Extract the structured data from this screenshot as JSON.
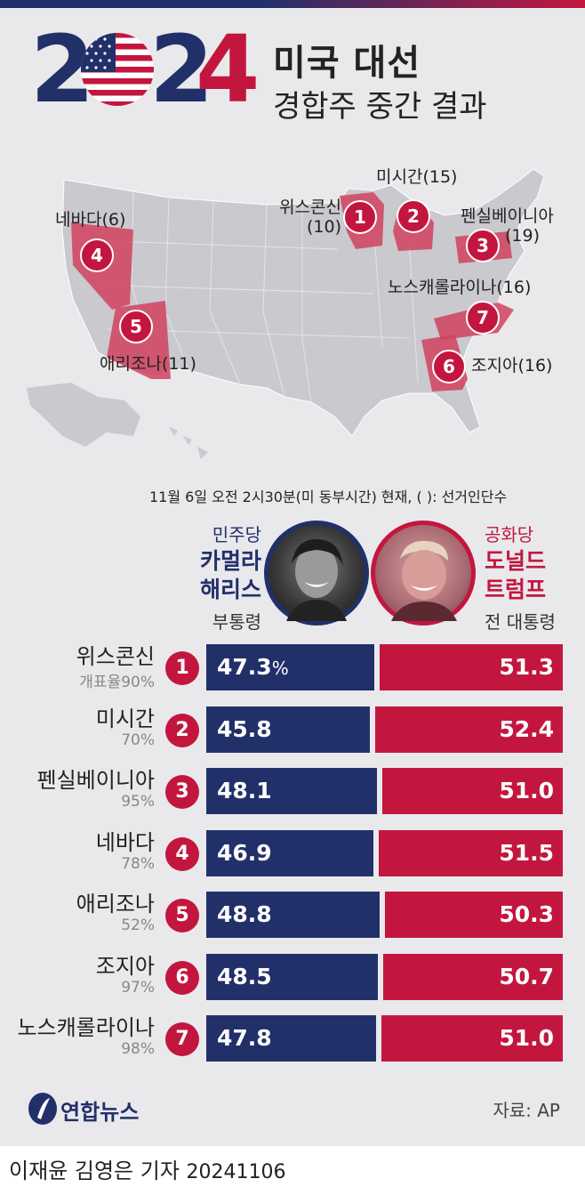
{
  "header": {
    "year_digits": [
      "2",
      "0",
      "2",
      "4"
    ],
    "title_line1": "미국 대선",
    "title_line2": "경합주 중간 결과"
  },
  "map": {
    "labels": [
      {
        "key": "wisconsin",
        "text": "위스콘신",
        "sub": "(10)",
        "pin": "1"
      },
      {
        "key": "michigan",
        "text": "미시간(15)",
        "pin": "2"
      },
      {
        "key": "pennsylvania",
        "text": "펜실베이니아",
        "sub": "(19)",
        "pin": "3"
      },
      {
        "key": "nevada",
        "text": "네바다(6)",
        "pin": "4"
      },
      {
        "key": "arizona",
        "text": "애리조나(11)",
        "pin": "5"
      },
      {
        "key": "georgia",
        "text": "조지아(16)",
        "pin": "6"
      },
      {
        "key": "north_carolina",
        "text": "노스캐롤라이나(16)",
        "pin": "7"
      }
    ]
  },
  "note": "11월 6일 오전 2시30분(미 동부시간) 현재, (  ): 선거인단수",
  "candidates": {
    "dem": {
      "party": "민주당",
      "name_line1": "카멀라",
      "name_line2": "해리스",
      "role": "부통령",
      "color": "#22306a"
    },
    "rep": {
      "party": "공화당",
      "name_line1": "도널드",
      "name_line2": "트럼프",
      "role": "전 대통령",
      "color": "#c3163e"
    }
  },
  "chart_data": {
    "type": "bar",
    "categories": [
      "위스콘신",
      "미시간",
      "펜실베이니아",
      "네바다",
      "애리조나",
      "조지아",
      "노스캐롤라이나"
    ],
    "counting_rates": [
      "개표율90%",
      "70%",
      "95%",
      "78%",
      "52%",
      "97%",
      "98%"
    ],
    "pin_numbers": [
      "1",
      "2",
      "3",
      "4",
      "5",
      "6",
      "7"
    ],
    "series": [
      {
        "name": "카멀라 해리스",
        "values": [
          47.3,
          45.8,
          48.1,
          46.9,
          48.8,
          48.5,
          47.8
        ],
        "labels": [
          "47.3",
          "45.8",
          "48.1",
          "46.9",
          "48.8",
          "48.5",
          "47.8"
        ],
        "color": "#22306a"
      },
      {
        "name": "도널드 트럼프",
        "values": [
          51.3,
          52.4,
          51.0,
          51.5,
          50.3,
          50.7,
          51.0
        ],
        "labels": [
          "51.3",
          "52.4",
          "51.0",
          "51.5",
          "50.3",
          "50.7",
          "51.0"
        ],
        "color": "#c3163e"
      }
    ],
    "first_label_unit": "%",
    "stacked": true,
    "orientation": "horizontal"
  },
  "footer": {
    "logo_text": "연합뉴스",
    "source": "자료: AP",
    "byline": "이재윤 김영은 기자",
    "date": "20241106"
  }
}
